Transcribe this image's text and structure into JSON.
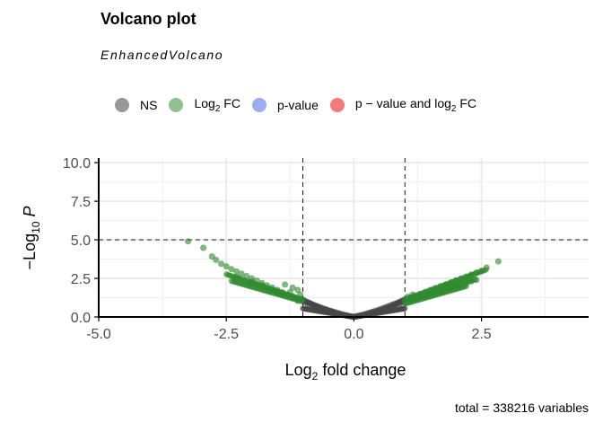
{
  "chart_data": {
    "type": "scatter",
    "title": "Volcano plot",
    "subtitle": "EnhancedVolcano",
    "xlabel": "Log2 fold change",
    "ylabel": "−Log10 P",
    "xlim": [
      -5.0,
      4.6
    ],
    "ylim": [
      0,
      10.3
    ],
    "x_ticks": [
      "-5.0",
      "-2.5",
      "0.0",
      "2.5"
    ],
    "x_tick_values": [
      -5.0,
      -2.5,
      0.0,
      2.5
    ],
    "y_ticks": [
      "0.0",
      "2.5",
      "5.0",
      "7.5",
      "10.0"
    ],
    "y_tick_values": [
      0.0,
      2.5,
      5.0,
      7.5,
      10.0
    ],
    "fc_cutoff": 1.0,
    "p_cutoff_line_y": 5.0,
    "grid": true,
    "legend_position": "top",
    "legend": [
      {
        "key": "ns",
        "label": "NS",
        "color": "#999999"
      },
      {
        "key": "log2fc",
        "label": "Log2 FC",
        "color": "#8fc28f"
      },
      {
        "key": "pvalue",
        "label": "p-value",
        "color": "#99adf2"
      },
      {
        "key": "both",
        "label": "p − value and log2 FC",
        "color": "#f07c7c"
      }
    ],
    "series": [
      {
        "key": "ns",
        "color": "#474747",
        "points": [
          [
            -0.99,
            1.1
          ],
          [
            -0.95,
            1.02
          ],
          [
            -0.9,
            0.95
          ],
          [
            -0.85,
            0.88
          ],
          [
            -0.8,
            0.8
          ],
          [
            -0.75,
            0.74
          ],
          [
            -0.7,
            0.68
          ],
          [
            -0.65,
            0.61
          ],
          [
            -0.6,
            0.55
          ],
          [
            -0.55,
            0.5
          ],
          [
            -0.5,
            0.44
          ],
          [
            -0.45,
            0.39
          ],
          [
            -0.4,
            0.34
          ],
          [
            -0.35,
            0.29
          ],
          [
            -0.3,
            0.24
          ],
          [
            -0.25,
            0.19
          ],
          [
            -0.2,
            0.15
          ],
          [
            -0.15,
            0.11
          ],
          [
            -0.1,
            0.07
          ],
          [
            -0.05,
            0.04
          ],
          [
            0.0,
            0.02
          ],
          [
            0.05,
            0.05
          ],
          [
            0.1,
            0.09
          ],
          [
            0.15,
            0.13
          ],
          [
            0.2,
            0.17
          ],
          [
            0.25,
            0.22
          ],
          [
            0.3,
            0.27
          ],
          [
            0.35,
            0.32
          ],
          [
            0.4,
            0.37
          ],
          [
            0.45,
            0.42
          ],
          [
            0.5,
            0.48
          ],
          [
            0.55,
            0.54
          ],
          [
            0.6,
            0.6
          ],
          [
            0.65,
            0.66
          ],
          [
            0.7,
            0.72
          ],
          [
            0.75,
            0.79
          ],
          [
            0.8,
            0.85
          ],
          [
            0.85,
            0.92
          ],
          [
            0.9,
            0.99
          ],
          [
            0.95,
            1.06
          ],
          [
            0.99,
            1.12
          ],
          [
            -0.98,
            0.95
          ],
          [
            -0.9,
            0.82
          ],
          [
            -0.8,
            0.7
          ],
          [
            -0.7,
            0.58
          ],
          [
            0.7,
            0.6
          ],
          [
            0.8,
            0.72
          ],
          [
            0.9,
            0.85
          ],
          [
            0.98,
            0.95
          ]
        ]
      },
      {
        "key": "log2fc",
        "color": "#2e8b2e",
        "points": [
          [
            -3.25,
            4.9
          ],
          [
            -2.95,
            4.48
          ],
          [
            -2.78,
            3.92
          ],
          [
            -2.7,
            3.7
          ],
          [
            -2.6,
            3.45
          ],
          [
            -2.5,
            3.28
          ],
          [
            -2.4,
            3.1
          ],
          [
            -2.3,
            2.95
          ],
          [
            -2.2,
            2.8
          ],
          [
            -2.1,
            2.65
          ],
          [
            -2.0,
            2.5
          ],
          [
            -1.9,
            2.35
          ],
          [
            -1.8,
            2.2
          ],
          [
            -1.7,
            2.05
          ],
          [
            -1.6,
            1.9
          ],
          [
            -1.5,
            1.75
          ],
          [
            -1.4,
            1.6
          ],
          [
            -1.3,
            1.45
          ],
          [
            -1.2,
            1.32
          ],
          [
            -1.1,
            1.2
          ],
          [
            -1.02,
            1.12
          ],
          [
            -2.3,
            2.6
          ],
          [
            -2.0,
            2.3
          ],
          [
            -1.8,
            2.05
          ],
          [
            -1.6,
            1.75
          ],
          [
            -1.4,
            1.5
          ],
          [
            -1.2,
            1.25
          ],
          [
            -1.1,
            1.05
          ],
          [
            -1.5,
            1.55
          ],
          [
            -1.35,
            2.1
          ],
          [
            -1.2,
            1.9
          ],
          [
            -1.1,
            1.75
          ],
          [
            -1.25,
            1.6
          ],
          [
            -1.05,
            1.45
          ],
          [
            1.02,
            1.15
          ],
          [
            1.1,
            1.25
          ],
          [
            1.2,
            1.38
          ],
          [
            1.3,
            1.5
          ],
          [
            1.4,
            1.62
          ],
          [
            1.5,
            1.75
          ],
          [
            1.6,
            1.88
          ],
          [
            1.7,
            2.0
          ],
          [
            1.8,
            2.12
          ],
          [
            1.9,
            2.25
          ],
          [
            2.0,
            2.38
          ],
          [
            2.1,
            2.5
          ],
          [
            2.2,
            2.62
          ],
          [
            2.3,
            2.75
          ],
          [
            2.4,
            2.88
          ],
          [
            2.5,
            3.0
          ],
          [
            2.6,
            3.2
          ],
          [
            2.83,
            3.6
          ],
          [
            1.2,
            1.15
          ],
          [
            1.4,
            1.35
          ],
          [
            1.6,
            1.55
          ],
          [
            1.8,
            1.75
          ],
          [
            2.0,
            1.95
          ],
          [
            2.2,
            2.15
          ],
          [
            2.4,
            2.4
          ],
          [
            1.1,
            1.05
          ],
          [
            1.3,
            1.25
          ],
          [
            1.5,
            1.45
          ],
          [
            1.7,
            1.65
          ],
          [
            1.9,
            1.85
          ],
          [
            2.1,
            2.05
          ],
          [
            2.3,
            2.3
          ],
          [
            1.05,
            1.3
          ],
          [
            1.15,
            1.45
          ]
        ]
      }
    ],
    "caption": "total = 338216 variables"
  }
}
